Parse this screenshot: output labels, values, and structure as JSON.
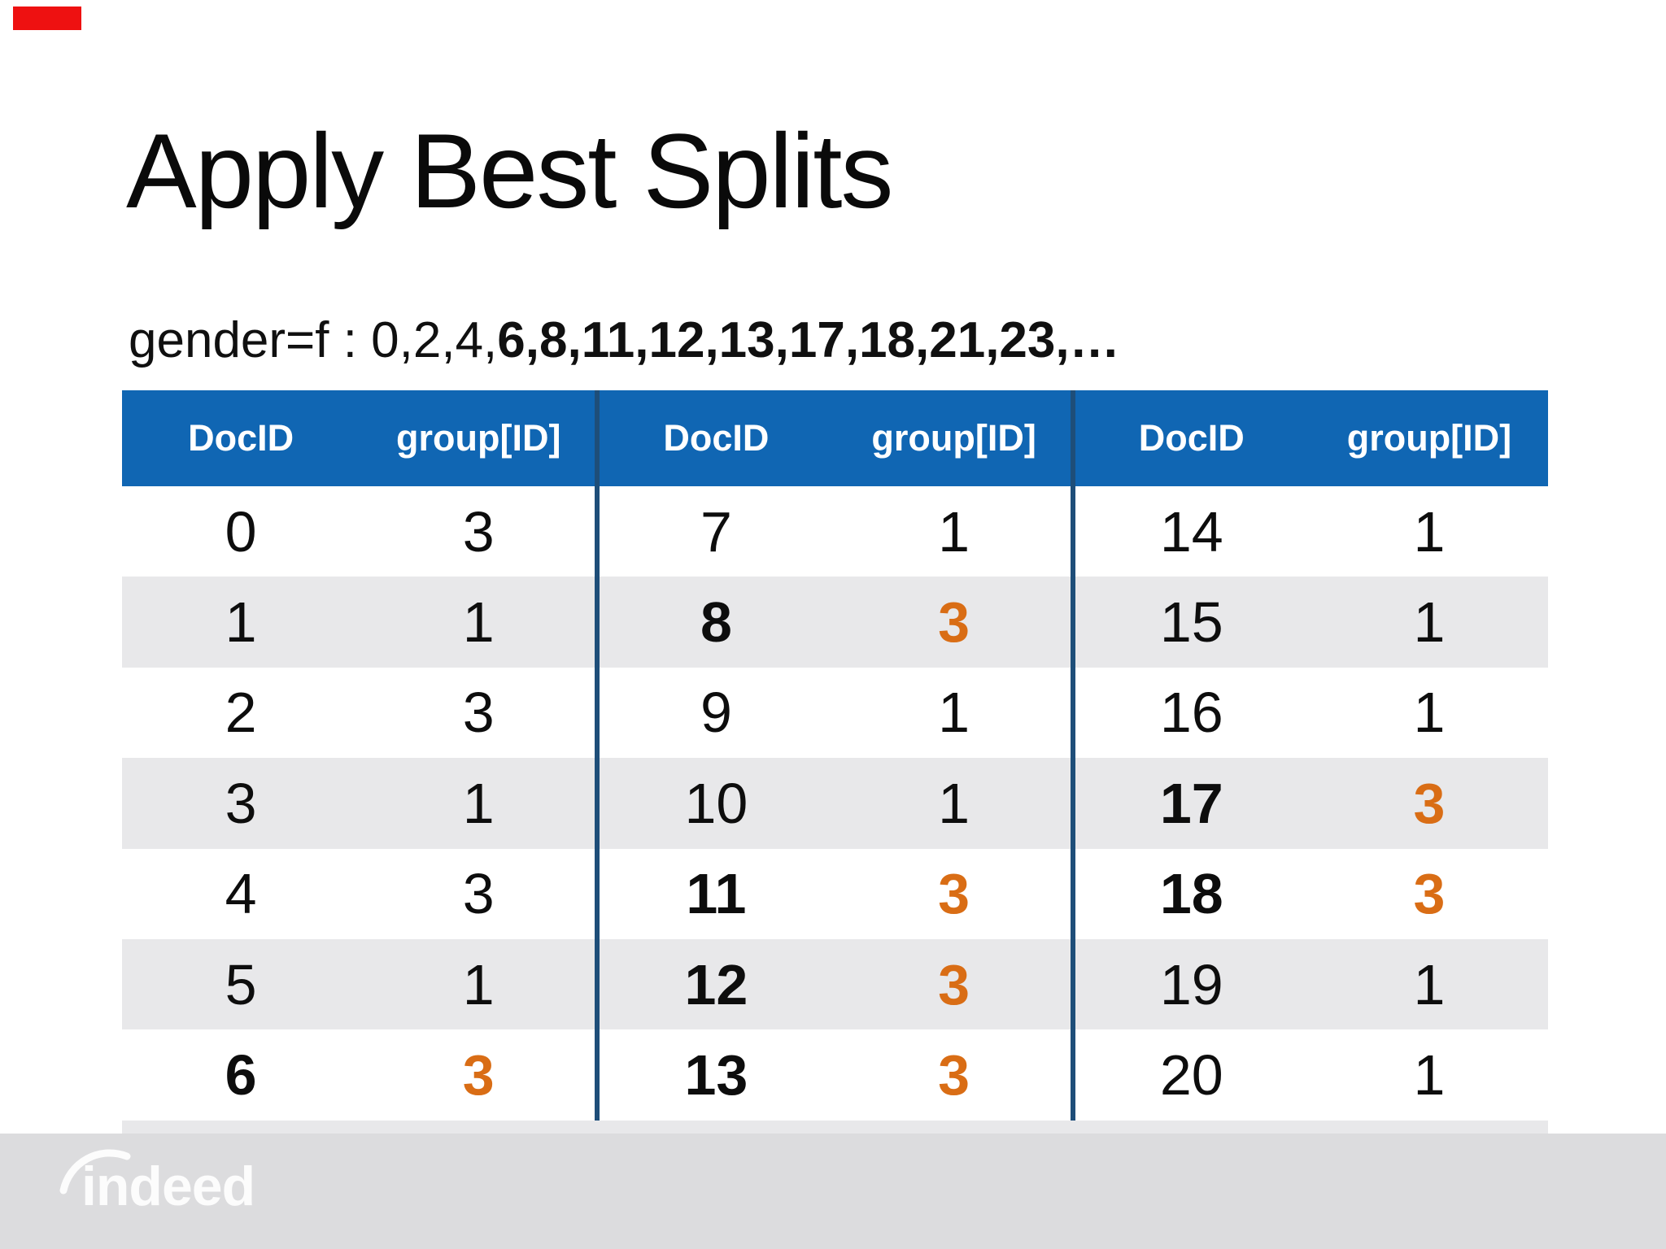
{
  "slide": {
    "title": "Apply Best Splits",
    "subtitle_regular": "gender=f : 0,2,4,",
    "subtitle_bold": "6,8,11,12,13,17,18,21,23,…"
  },
  "table": {
    "columns": [
      "DocID",
      "group[ID]"
    ],
    "sections": [
      {
        "rows": [
          {
            "doc": "0",
            "group": "3",
            "highlight": false
          },
          {
            "doc": "1",
            "group": "1",
            "highlight": false
          },
          {
            "doc": "2",
            "group": "3",
            "highlight": false
          },
          {
            "doc": "3",
            "group": "1",
            "highlight": false
          },
          {
            "doc": "4",
            "group": "3",
            "highlight": false
          },
          {
            "doc": "5",
            "group": "1",
            "highlight": false
          },
          {
            "doc": "6",
            "group": "3",
            "highlight": true
          }
        ]
      },
      {
        "rows": [
          {
            "doc": "7",
            "group": "1",
            "highlight": false
          },
          {
            "doc": "8",
            "group": "3",
            "highlight": true
          },
          {
            "doc": "9",
            "group": "1",
            "highlight": false
          },
          {
            "doc": "10",
            "group": "1",
            "highlight": false
          },
          {
            "doc": "11",
            "group": "3",
            "highlight": true
          },
          {
            "doc": "12",
            "group": "3",
            "highlight": true
          },
          {
            "doc": "13",
            "group": "3",
            "highlight": true
          }
        ]
      },
      {
        "rows": [
          {
            "doc": "14",
            "group": "1",
            "highlight": false
          },
          {
            "doc": "15",
            "group": "1",
            "highlight": false
          },
          {
            "doc": "16",
            "group": "1",
            "highlight": false
          },
          {
            "doc": "17",
            "group": "3",
            "highlight": true
          },
          {
            "doc": "18",
            "group": "3",
            "highlight": true
          },
          {
            "doc": "19",
            "group": "1",
            "highlight": false
          },
          {
            "doc": "20",
            "group": "1",
            "highlight": false
          }
        ]
      }
    ]
  },
  "footer": {
    "logo_text": "indeed"
  },
  "colors": {
    "header_blue": "#1066b3",
    "divider_navy": "#1e4e79",
    "row_alt_gray": "#e8e8ea",
    "highlight_orange": "#d96d15",
    "footer_gray": "#dcdcde",
    "marker_red": "#ee1111"
  }
}
